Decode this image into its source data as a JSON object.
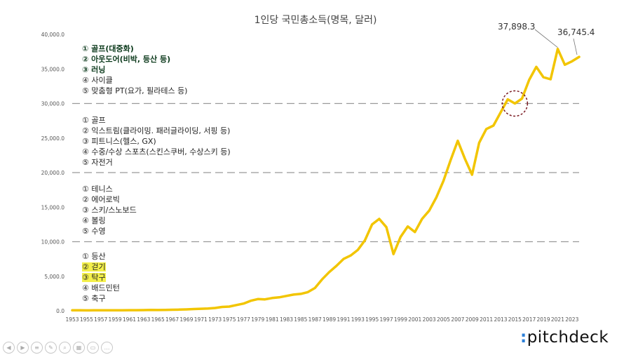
{
  "chart_data": {
    "type": "line",
    "title": "1인당 국민총소득(명목, 달러)",
    "ylim": [
      0,
      40000
    ],
    "yticks": [
      "0.0",
      "5,000.0",
      "10,000.0",
      "15,000.0",
      "20,000.0",
      "25,000.0",
      "30,000.0",
      "35,000.0",
      "40,000.0"
    ],
    "xticks": [
      "1953",
      "1955",
      "1957",
      "1959",
      "1961",
      "1963",
      "1965",
      "1967",
      "1969",
      "1971",
      "1973",
      "1975",
      "1977",
      "1979",
      "1981",
      "1983",
      "1985",
      "1987",
      "1989",
      "1991",
      "1993",
      "1995",
      "1997",
      "1999",
      "2001",
      "2003",
      "2005",
      "2007",
      "2009",
      "2011",
      "2013",
      "2015",
      "2017",
      "2019",
      "2021",
      "2023"
    ],
    "grid": "dashed at 10,000 / 20,000 / 30,000",
    "series": [
      {
        "color": "#f2c500",
        "x": [
          1953,
          1954,
          1955,
          1956,
          1957,
          1958,
          1959,
          1960,
          1961,
          1962,
          1963,
          1964,
          1965,
          1966,
          1967,
          1968,
          1969,
          1970,
          1971,
          1972,
          1973,
          1974,
          1975,
          1976,
          1977,
          1978,
          1979,
          1980,
          1981,
          1982,
          1983,
          1984,
          1985,
          1986,
          1987,
          1988,
          1989,
          1990,
          1991,
          1992,
          1993,
          1994,
          1995,
          1996,
          1997,
          1998,
          1999,
          2000,
          2001,
          2002,
          2003,
          2004,
          2005,
          2006,
          2007,
          2008,
          2009,
          2010,
          2011,
          2012,
          2013,
          2014,
          2015,
          2016,
          2017,
          2018,
          2019,
          2020,
          2021,
          2022,
          2023,
          2024
        ],
        "y": [
          67,
          70,
          65,
          66,
          74,
          80,
          81,
          79,
          94,
          91,
          104,
          124,
          108,
          127,
          148,
          177,
          208,
          255,
          290,
          320,
          410,
          560,
          610,
          830,
          1050,
          1450,
          1700,
          1650,
          1850,
          1950,
          2150,
          2350,
          2450,
          2700,
          3300,
          4550,
          5600,
          6500,
          7500,
          8000,
          8800,
          10200,
          12500,
          13300,
          12100,
          8200,
          10700,
          12200,
          11400,
          13300,
          14500,
          16400,
          18800,
          21800,
          24600,
          22000,
          19700,
          24300,
          26300,
          26800,
          28700,
          30600,
          30000,
          30700,
          33400,
          35300,
          33800,
          33500,
          37898.3,
          35600,
          36100,
          36745.4
        ]
      }
    ],
    "annotations": [
      {
        "label": "37,898.3",
        "x": 2021
      },
      {
        "label": "36,745.4",
        "x": 2024
      },
      {
        "shape": "dashed-circle",
        "x": 2015,
        "y": 30000,
        "color": "#7b1c24"
      }
    ]
  },
  "tiers": [
    {
      "bold": true,
      "items": [
        "① 골프(대중화)",
        "② 아웃도어(비박, 등산 등)",
        "③ 러닝",
        "④ 사이클",
        "⑤ 맞춤형 PT(요가, 필라테스 등)"
      ]
    },
    {
      "bold": false,
      "items": [
        "① 골프",
        "② 익스트림(클라이밍. 패러글라이딩, 서핑 등)",
        "③ 피트니스(헬스, GX)",
        "④ 수중/수상 스포츠(스킨스쿠버, 수상스키 등)",
        "⑤ 자전거"
      ]
    },
    {
      "bold": false,
      "items": [
        "① 테니스",
        "② 에어로빅",
        "③ 스키/스노보드",
        "④ 볼링",
        "⑤ 수영"
      ]
    },
    {
      "bold": false,
      "items": [
        "① 등산",
        "② 걷기",
        "③ 탁구",
        "④ 배드민턴",
        "⑤ 축구"
      ]
    }
  ],
  "logo": {
    "dot": ":",
    "text": "pitchdeck"
  },
  "toolbar_icons": [
    "back-icon",
    "forward-icon",
    "menu-icon",
    "pen-icon",
    "zoom-icon",
    "grid-icon",
    "video-icon",
    "more-icon"
  ]
}
